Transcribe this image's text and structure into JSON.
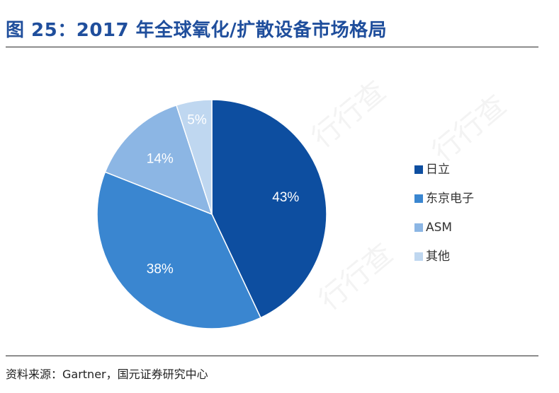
{
  "header": {
    "title": "图 25：2017 年全球氧化/扩散设备市场格局"
  },
  "footer": {
    "source": "资料来源：Gartner，国元证券研究中心"
  },
  "watermark": {
    "text": "行行查"
  },
  "chart_data": {
    "type": "pie",
    "categories": [
      "日立",
      "东京电子",
      "ASM",
      "其他"
    ],
    "values": [
      43,
      38,
      14,
      5
    ],
    "labels": [
      "43%",
      "38%",
      "14%",
      "5%"
    ],
    "colors": [
      "#0d4ea0",
      "#3a86d0",
      "#8cb6e4",
      "#bfd7f0"
    ],
    "start_angle_deg": 0,
    "direction": "clockwise",
    "legend_position": "right"
  }
}
